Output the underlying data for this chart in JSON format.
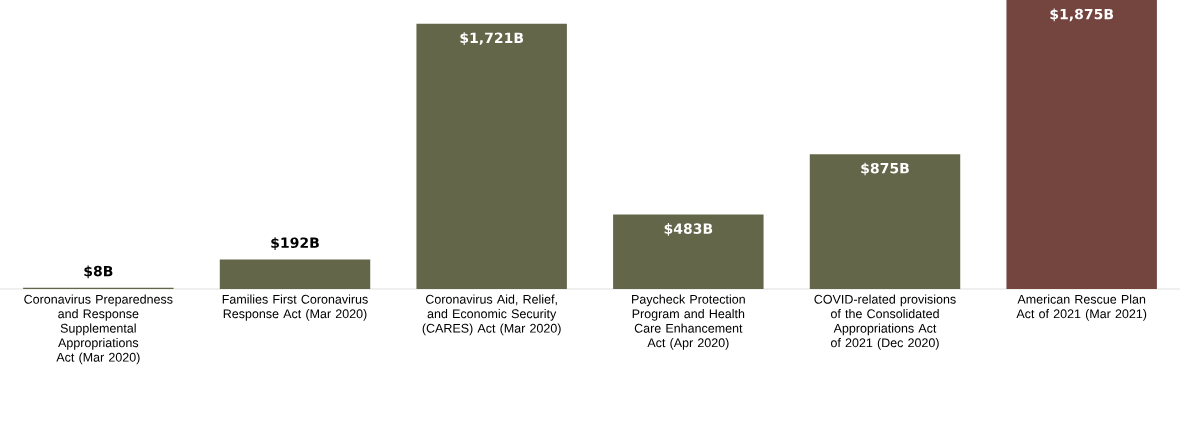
{
  "chart_data": {
    "type": "bar",
    "categories": [
      "Coronavirus Preparedness and Response Supplemental Appropriations Act (Mar 2020)",
      "Families First Coronavirus Response Act (Mar 2020)",
      "Coronavirus Aid, Relief, and Economic Security (CARES) Act (Mar 2020)",
      "Paycheck Protection Program and Health Care Enhancement Act (Apr 2020)",
      "COVID-related provisions of the Consolidated Appropriations Act of 2021 (Dec 2020)",
      "American Rescue Plan Act of 2021 (Mar 2021)"
    ],
    "values": [
      8,
      192,
      1721,
      483,
      875,
      1875
    ],
    "colors": [
      "#636648",
      "#636648",
      "#636648",
      "#636648",
      "#636648",
      "#74443f"
    ],
    "value_labels": [
      "$8B",
      "$192B",
      "$1,721B",
      "$483B",
      "$875B",
      "$1,875B"
    ]
  }
}
